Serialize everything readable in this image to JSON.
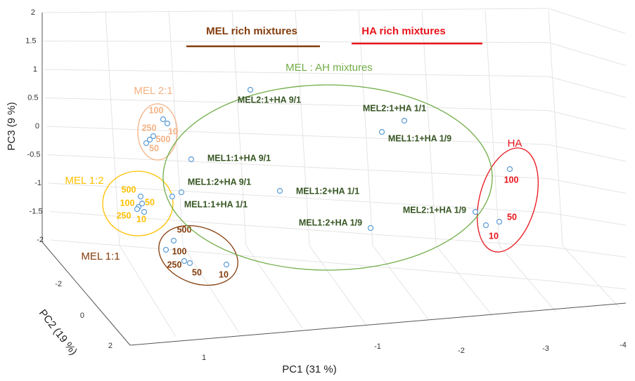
{
  "axes": {
    "x_label": "PC1 (31 %)",
    "y_label": "PC2 (19 %)",
    "z_label": "PC3 (9 %)",
    "xticks": [
      1,
      -1,
      -2,
      -3,
      -4
    ],
    "yticks": [
      -2,
      0,
      2
    ],
    "zticks": [
      2,
      1.5,
      1,
      0.5,
      0,
      -0.5,
      -1,
      -1.5,
      -2
    ]
  },
  "headers": [
    {
      "text": "MEL rich mixtures",
      "color": "#843c0c"
    },
    {
      "text": "HA rich mixtures",
      "color": "#e8141b"
    }
  ],
  "groups": [
    {
      "label": "MEL 2:1",
      "color": "#f4b183",
      "points": [
        "100",
        "250",
        "10",
        "500",
        "50"
      ]
    },
    {
      "label": "MEL 1:2",
      "color": "#ffc000",
      "points": [
        "500",
        "100",
        "50",
        "250",
        "10"
      ]
    },
    {
      "label": "MEL 1:1",
      "color": "#843c0c",
      "points": [
        "500",
        "100",
        "250",
        "50",
        "10"
      ]
    },
    {
      "label": "HA",
      "color": "#e8141b",
      "points": [
        "100",
        "50",
        "10"
      ]
    },
    {
      "label": "MEL : AH mixtures",
      "color": "#70ad47",
      "point_color": "#375623",
      "points": [
        "MEL2:1+HA 9/1",
        "MEL2:1+HA 1/1",
        "MEL1:1+HA 1/9",
        "MEL1:1+HA 9/1",
        "MEL1:2+HA 9/1",
        "MEL1:1+HA 1/1",
        "MEL1:2+HA 1/1",
        "MEL1:2+HA 1/9",
        "MEL2:1+HA 1/9"
      ]
    }
  ]
}
